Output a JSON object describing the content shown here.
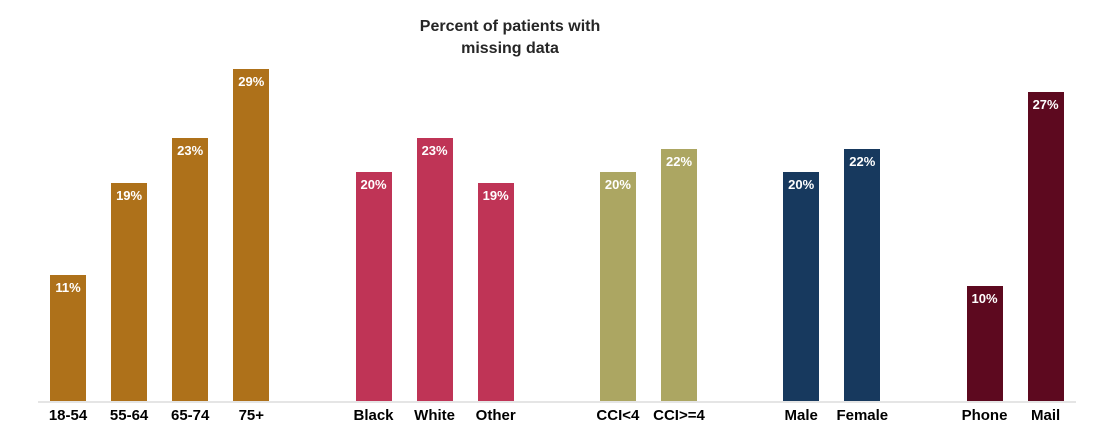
{
  "title": "Percent of patients with\nmissing data",
  "chart_data": {
    "type": "bar",
    "title": "Percent of patients with missing data",
    "xlabel": "",
    "ylabel": "",
    "ylim": [
      0,
      30
    ],
    "grid": false,
    "legend": "none",
    "value_labels": "inside-top, white, percent",
    "baseline_color": "#e5e5e5",
    "groups": [
      {
        "name": "age",
        "color": "#AE711A",
        "bars": [
          {
            "label": "18-54",
            "value": 11,
            "display": "11%"
          },
          {
            "label": "55-64",
            "value": 19,
            "display": "19%"
          },
          {
            "label": "65-74",
            "value": 23,
            "display": "23%"
          },
          {
            "label": "75+",
            "value": 29,
            "display": "29%"
          }
        ]
      },
      {
        "name": "race",
        "color": "#BF3456",
        "bars": [
          {
            "label": "Black",
            "value": 20,
            "display": "20%"
          },
          {
            "label": "White",
            "value": 23,
            "display": "23%"
          },
          {
            "label": "Other",
            "value": 19,
            "display": "19%"
          }
        ]
      },
      {
        "name": "cci",
        "color": "#ACA662",
        "bars": [
          {
            "label": "CCI<4",
            "value": 20,
            "display": "20%"
          },
          {
            "label": "CCI>=4",
            "value": 22,
            "display": "22%"
          }
        ]
      },
      {
        "name": "sex",
        "color": "#17395E",
        "bars": [
          {
            "label": "Male",
            "value": 20,
            "display": "20%"
          },
          {
            "label": "Female",
            "value": 22,
            "display": "22%"
          }
        ]
      },
      {
        "name": "mode",
        "color": "#5D091F",
        "bars": [
          {
            "label": "Phone",
            "value": 10,
            "display": "10%"
          },
          {
            "label": "Mail",
            "value": 27,
            "display": "27%"
          }
        ]
      }
    ]
  }
}
